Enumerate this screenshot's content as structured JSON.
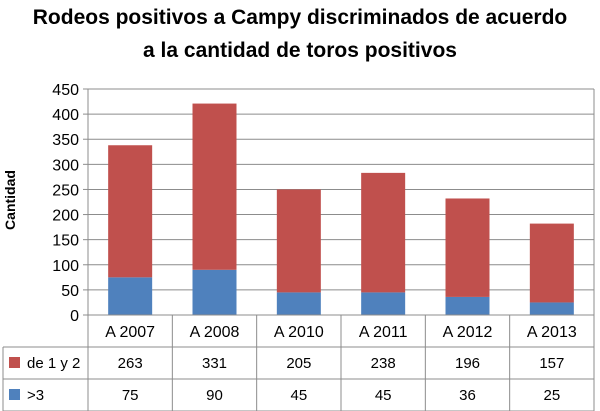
{
  "chart_data": {
    "type": "bar",
    "stacked": true,
    "title_lines": [
      "Rodeos positivos a Campy discriminados de acuerdo",
      "a la cantidad de toros positivos"
    ],
    "xlabel": "",
    "ylabel": "Cantidad",
    "ylim": [
      0,
      450
    ],
    "yticks": [
      0,
      50,
      100,
      150,
      200,
      250,
      300,
      350,
      400,
      450
    ],
    "grid": true,
    "categories": [
      "A 2007",
      "A 2008",
      "A 2010",
      "A 2011",
      "A 2012",
      "A 2013"
    ],
    "series": [
      {
        "name": ">3",
        "color": "#4f81bd",
        "values": [
          75,
          90,
          45,
          45,
          36,
          25
        ]
      },
      {
        "name": "de 1 y 2",
        "color": "#c0504d",
        "values": [
          263,
          331,
          205,
          238,
          196,
          157
        ]
      }
    ],
    "table_row_order": [
      1,
      0
    ]
  }
}
